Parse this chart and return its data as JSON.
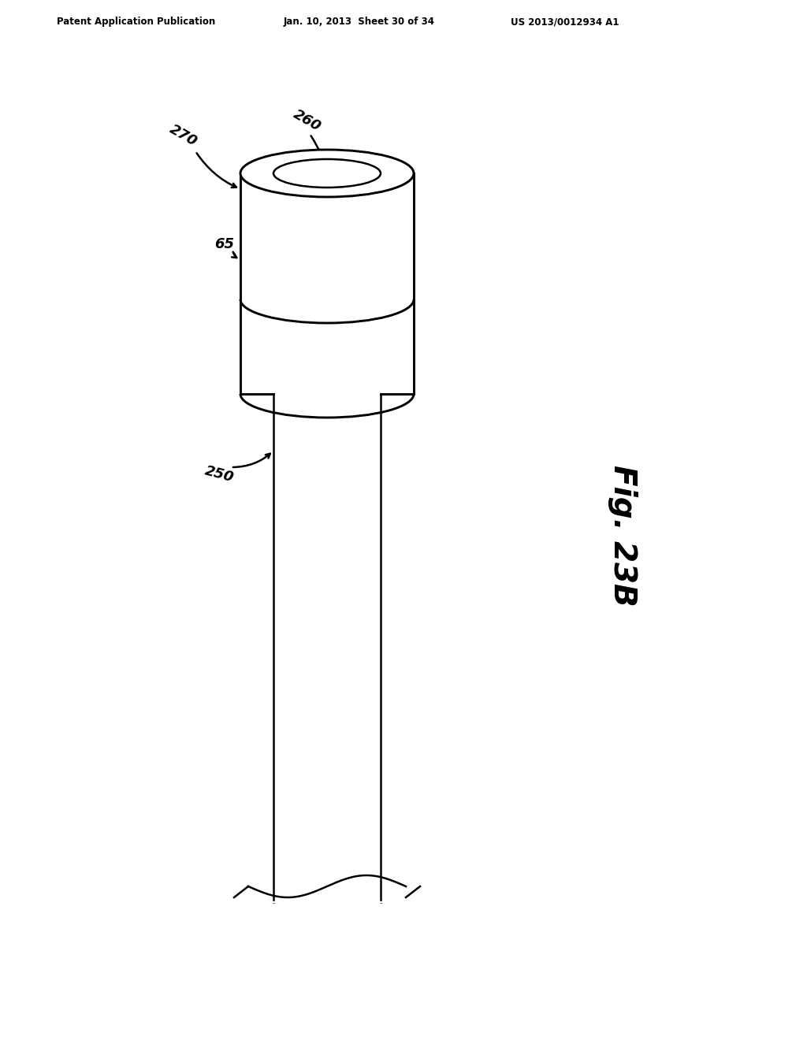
{
  "background_color": "#ffffff",
  "header_left": "Patent Application Publication",
  "header_mid": "Jan. 10, 2013  Sheet 30 of 34",
  "header_right": "US 2013/0012934 A1",
  "fig_label": "Fig. 23B",
  "label_270": "270",
  "label_260": "260",
  "label_65": "65",
  "label_250": "250",
  "line_color": "#000000",
  "line_width": 1.8,
  "cylinder_color": "#ffffff"
}
